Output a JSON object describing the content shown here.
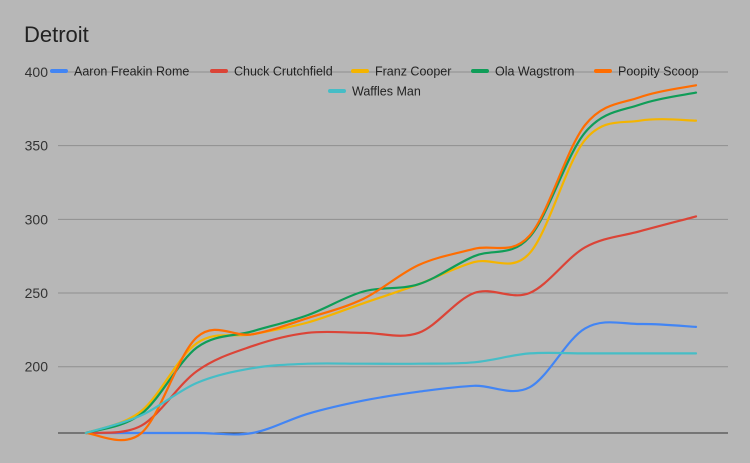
{
  "chart_data": {
    "type": "line",
    "title": "Detroit",
    "xlabel": "",
    "ylabel": "",
    "ylim": [
      155,
      400
    ],
    "yticks": [
      200,
      250,
      300,
      350,
      400
    ],
    "grid": true,
    "legend_position": "top",
    "x": [
      0,
      1,
      2,
      3,
      4,
      5,
      6,
      7,
      8,
      9,
      10,
      11
    ],
    "series": [
      {
        "name": "Aaron Freakin Rome",
        "color": "#4285f4",
        "values": [
          155,
          155,
          155,
          155,
          168,
          177,
          183,
          187,
          186,
          226,
          229,
          227
        ]
      },
      {
        "name": "Chuck Crutchfield",
        "color": "#db4437",
        "values": [
          155,
          160,
          197,
          214,
          223,
          223,
          223,
          250,
          250,
          281,
          292,
          302
        ]
      },
      {
        "name": "Franz Cooper",
        "color": "#f4b400",
        "values": [
          155,
          170,
          216,
          222,
          230,
          243,
          256,
          271,
          277,
          354,
          367,
          367
        ]
      },
      {
        "name": "Ola Wagstrom",
        "color": "#0f9d58",
        "values": [
          155,
          168,
          213,
          224,
          235,
          251,
          256,
          275,
          288,
          359,
          378,
          386
        ]
      },
      {
        "name": "Poopity Scoop",
        "color": "#ff6d01",
        "values": [
          155,
          155,
          220,
          222,
          233,
          246,
          269,
          280,
          289,
          364,
          383,
          391
        ]
      },
      {
        "name": "Waffles Man",
        "color": "#46bdc6",
        "values": [
          155,
          167,
          189,
          199,
          202,
          202,
          202,
          203,
          209,
          209,
          209,
          209
        ]
      }
    ]
  }
}
